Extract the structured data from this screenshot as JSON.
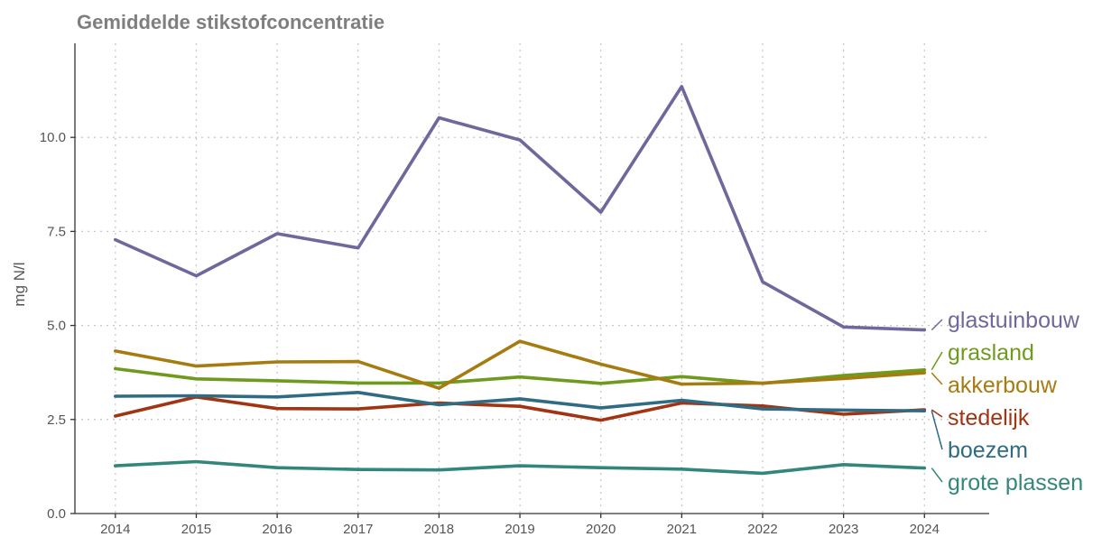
{
  "chart_data": {
    "type": "line",
    "title": "Gemiddelde stikstofconcentratie",
    "xlabel": "",
    "ylabel": "mg N/l",
    "x": [
      2014,
      2015,
      2016,
      2017,
      2018,
      2019,
      2020,
      2021,
      2022,
      2023,
      2024
    ],
    "xlim": [
      2013.5,
      2024.8
    ],
    "ylim": [
      0,
      12.5
    ],
    "yticks": [
      0,
      2.5,
      5,
      7.5,
      10
    ],
    "ytick_labels": [
      "0.0",
      "2.5",
      "5.0",
      "7.5",
      "10.0"
    ],
    "grid": true,
    "legend": "direct labels at right end of lines",
    "series": [
      {
        "name": "glastuinbouw",
        "color": "#72679c",
        "values": [
          7.28,
          6.32,
          7.44,
          7.06,
          10.52,
          9.93,
          8.01,
          11.35,
          6.16,
          4.96,
          4.88
        ]
      },
      {
        "name": "grasland",
        "color": "#6e9a1e",
        "values": [
          3.85,
          3.58,
          3.53,
          3.47,
          3.47,
          3.63,
          3.46,
          3.64,
          3.46,
          3.67,
          3.82
        ]
      },
      {
        "name": "akkerbouw",
        "color": "#a67b10",
        "values": [
          4.32,
          3.92,
          4.03,
          4.04,
          3.33,
          4.58,
          3.97,
          3.44,
          3.47,
          3.59,
          3.74
        ]
      },
      {
        "name": "stedelijk",
        "color": "#a33413",
        "values": [
          2.59,
          3.1,
          2.79,
          2.78,
          2.94,
          2.85,
          2.48,
          2.94,
          2.86,
          2.64,
          2.76
        ]
      },
      {
        "name": "boezem",
        "color": "#2f6b85",
        "values": [
          3.12,
          3.13,
          3.1,
          3.22,
          2.89,
          3.05,
          2.81,
          3.01,
          2.78,
          2.75,
          2.73
        ]
      },
      {
        "name": "grote plassen",
        "color": "#32877a",
        "values": [
          1.27,
          1.38,
          1.22,
          1.17,
          1.16,
          1.27,
          1.22,
          1.18,
          1.07,
          1.3,
          1.21
        ]
      }
    ]
  }
}
